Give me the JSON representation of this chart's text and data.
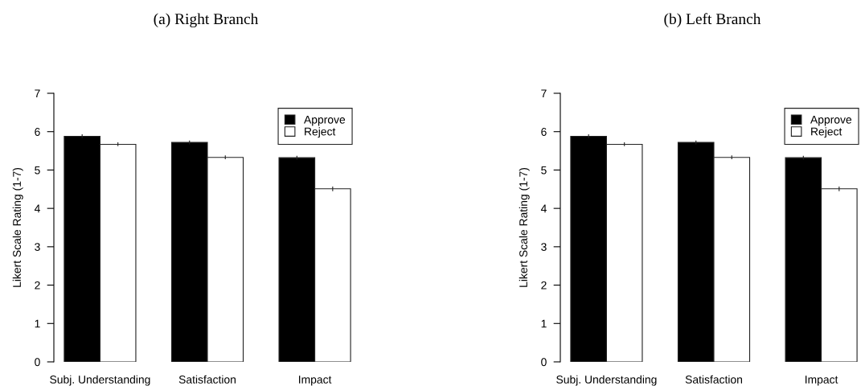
{
  "chart_data": [
    {
      "type": "bar",
      "title": "(a) Right Branch",
      "ylabel": "Likert Scale Rating (1-7)",
      "categories": [
        "Subj. Understanding",
        "Satisfaction",
        "Impact"
      ],
      "ylim": [
        0,
        7
      ],
      "yticks": [
        0,
        1,
        2,
        3,
        4,
        5,
        6,
        7
      ],
      "legend": "top right",
      "series": [
        {
          "name": "Approve",
          "color": "#000000",
          "values": [
            5.88,
            5.72,
            5.32
          ],
          "errors": [
            0.05,
            0.05,
            0.05
          ]
        },
        {
          "name": "Reject",
          "color": "#ffffff",
          "values": [
            5.67,
            5.33,
            4.51
          ],
          "errors": [
            0.05,
            0.05,
            0.06
          ]
        }
      ]
    },
    {
      "type": "bar",
      "title": "(b) Left Branch",
      "ylabel": "Likert Scale Rating (1-7)",
      "categories": [
        "Subj. Understanding",
        "Satisfaction",
        "Impact"
      ],
      "ylim": [
        0,
        7
      ],
      "yticks": [
        0,
        1,
        2,
        3,
        4,
        5,
        6,
        7
      ],
      "legend": "top right",
      "series": [
        {
          "name": "Approve",
          "color": "#000000",
          "values": [
            5.88,
            5.72,
            5.32
          ],
          "errors": [
            0.05,
            0.05,
            0.05
          ]
        },
        {
          "name": "Reject",
          "color": "#ffffff",
          "values": [
            5.67,
            5.33,
            4.51
          ],
          "errors": [
            0.05,
            0.05,
            0.06
          ]
        }
      ]
    }
  ]
}
